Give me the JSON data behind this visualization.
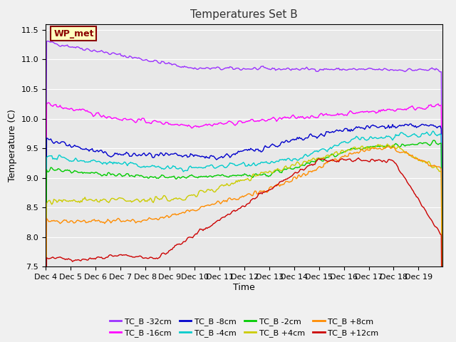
{
  "title": "Temperatures Set B",
  "xlabel": "Time",
  "ylabel": "Temperature (C)",
  "ylim": [
    7.5,
    11.6
  ],
  "x_tick_labels": [
    "Dec 4",
    "Dec 5",
    "Dec 6",
    "Dec 7",
    "Dec 8",
    "Dec 9",
    "Dec 10",
    "Dec 11",
    "Dec 12",
    "Dec 13",
    "Dec 14",
    "Dec 15",
    "Dec 16",
    "Dec 17",
    "Dec 18",
    "Dec 19"
  ],
  "wp_met_label": "WP_met",
  "wp_met_color": "#8B0000",
  "wp_met_bg": "#FFFFC0",
  "series": [
    {
      "label": "TC_B -32cm",
      "color": "#9B30FF"
    },
    {
      "label": "TC_B -16cm",
      "color": "#FF00FF"
    },
    {
      "label": "TC_B -8cm",
      "color": "#0000CC"
    },
    {
      "label": "TC_B -4cm",
      "color": "#00CCCC"
    },
    {
      "label": "TC_B -2cm",
      "color": "#00CC00"
    },
    {
      "label": "TC_B +4cm",
      "color": "#CCCC00"
    },
    {
      "label": "TC_B +8cm",
      "color": "#FF8C00"
    },
    {
      "label": "TC_B +12cm",
      "color": "#CC0000"
    }
  ],
  "background_color": "#E8E8E8",
  "figure_bg": "#F0F0F0",
  "yticks": [
    7.5,
    8.0,
    8.5,
    9.0,
    9.5,
    10.0,
    10.5,
    11.0,
    11.5
  ]
}
